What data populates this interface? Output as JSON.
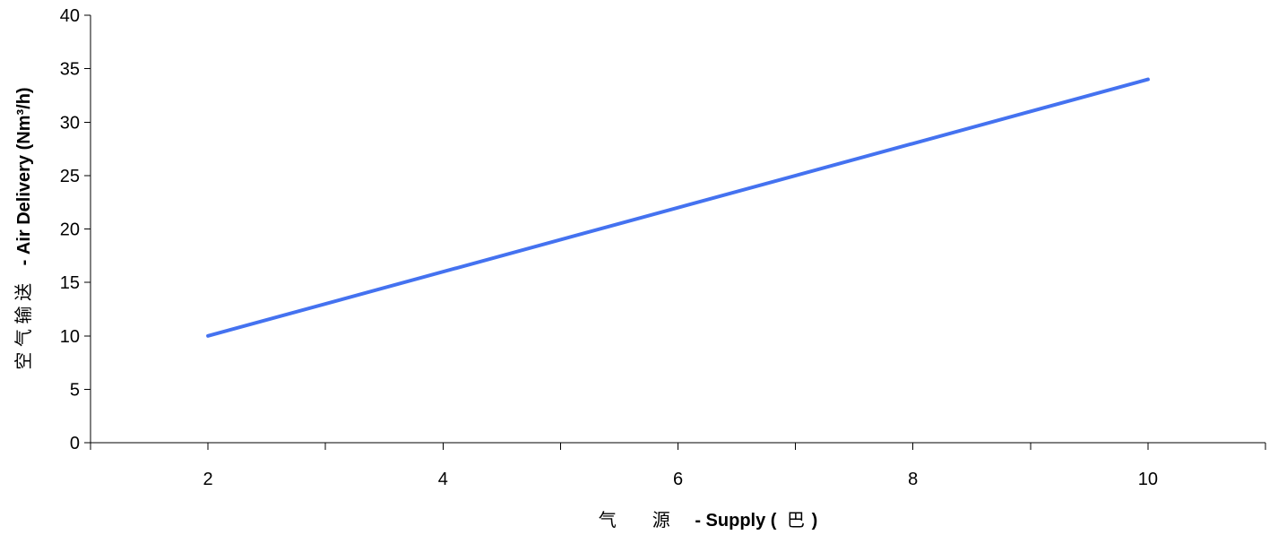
{
  "chart_data": {
    "type": "line",
    "title": "",
    "xlabel_cjk": "气　　源",
    "xlabel_en_prefix": "- Supply (",
    "xlabel_unit_cjk": "巴",
    "xlabel_en_suffix": ")",
    "ylabel_cjk": "空 气 输 送",
    "ylabel_en": "- Air Delivery (Nm³/h)",
    "xlim": [
      1,
      11
    ],
    "ylim": [
      0,
      40
    ],
    "x_ticks": [
      2,
      4,
      6,
      8,
      10
    ],
    "x_minor_ticks": [
      1,
      2,
      3,
      4,
      5,
      6,
      7,
      8,
      9,
      10,
      11
    ],
    "y_ticks": [
      0,
      5,
      10,
      15,
      20,
      25,
      30,
      35,
      40
    ],
    "grid": false,
    "legend": "none",
    "series": [
      {
        "color": "#4472F0",
        "x": [
          2,
          10
        ],
        "y": [
          10,
          34
        ]
      }
    ]
  }
}
